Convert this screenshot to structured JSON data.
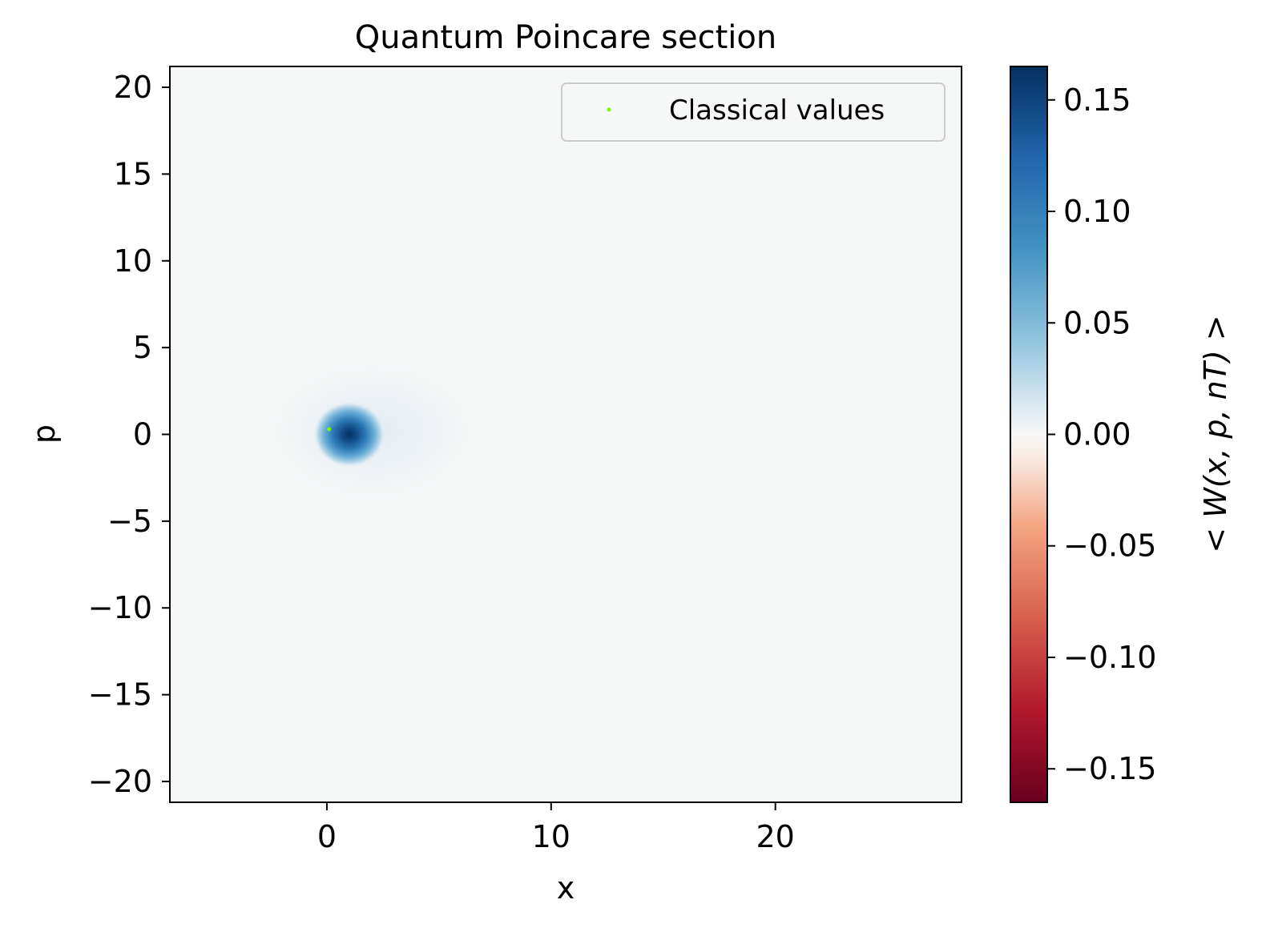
{
  "chart_data": {
    "type": "heatmap",
    "title": "Quantum Poincare section",
    "xlabel": "x",
    "ylabel": "p",
    "xlim": [
      -7,
      28.3
    ],
    "ylim": [
      -21.2,
      21.2
    ],
    "xticks": [
      0,
      10,
      20
    ],
    "xtick_labels": [
      "0",
      "10",
      "20"
    ],
    "yticks": [
      20,
      15,
      10,
      5,
      0,
      -5,
      -10,
      -15,
      -20
    ],
    "ytick_labels": [
      "20",
      "15",
      "10",
      "5",
      "0",
      "−5",
      "−10",
      "−15",
      "−20"
    ],
    "grid": false,
    "colormap": "RdBu",
    "colorbar": {
      "label": "< W(x, p, nT) >",
      "range": [
        -0.165,
        0.165
      ],
      "ticks": [
        0.15,
        0.1,
        0.05,
        0.0,
        -0.05,
        -0.1,
        -0.15
      ],
      "tick_labels": [
        "0.15",
        "0.10",
        "0.05",
        "0.00",
        "−0.05",
        "−0.10",
        "−0.15"
      ]
    },
    "wigner_peak": {
      "x": 1.0,
      "p": 0.0,
      "value": 0.165
    },
    "series": [
      {
        "name": "Classical values",
        "type": "scatter",
        "color": "#7cfc00",
        "points": [
          [
            0.1,
            0.3
          ]
        ]
      }
    ],
    "legend": {
      "position": "top-right",
      "entries": [
        "Classical values"
      ]
    }
  }
}
